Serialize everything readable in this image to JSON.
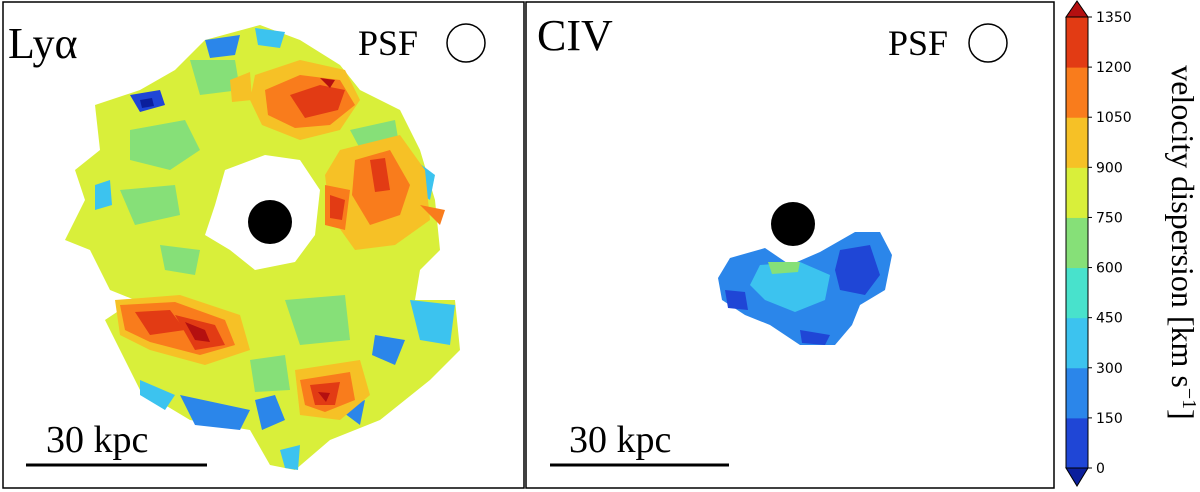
{
  "chart_data": {
    "type": "heatmap",
    "panels": [
      {
        "label": "Lyα",
        "psf_label": "PSF",
        "scalebar_label": "30 kpc"
      },
      {
        "label": "CIV",
        "psf_label": "PSF",
        "scalebar_label": "30 kpc"
      }
    ],
    "colorbar": {
      "title": "velocity dispersion [km s",
      "title_sup": "−1",
      "title_close": "]",
      "levels": [
        0,
        150,
        300,
        450,
        600,
        750,
        900,
        1050,
        1200,
        1350
      ],
      "tick_labels": [
        "0",
        "150",
        "300",
        "450",
        "600",
        "750",
        "900",
        "1050",
        "1200",
        "1350"
      ],
      "colors": [
        "#0b1f9c",
        "#1f46d6",
        "#2b86ea",
        "#3cc3ef",
        "#48e2cc",
        "#86e078",
        "#d9ef3a",
        "#f6c126",
        "#f97c1c",
        "#e23b14",
        "#b41010"
      ]
    }
  }
}
